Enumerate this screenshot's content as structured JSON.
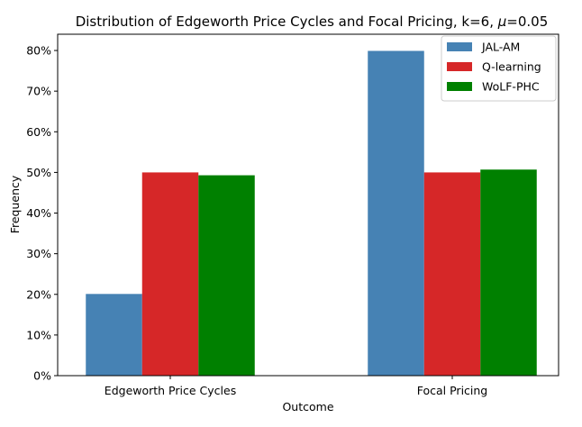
{
  "chart_data": {
    "type": "bar",
    "title_main": "Distribution of Edgeworth Price Cycles and Focal Pricing, k=6, ",
    "title_mu": "μ",
    "title_tail": "=0.05",
    "xlabel": "Outcome",
    "ylabel": "Frequency",
    "categories": [
      "Edgeworth Price Cycles",
      "Focal Pricing"
    ],
    "series": [
      {
        "name": "JAL-AM",
        "color": "#4682b4",
        "values": [
          20.1,
          79.9
        ]
      },
      {
        "name": "Q-learning",
        "color": "#d62728",
        "values": [
          50.0,
          50.0
        ]
      },
      {
        "name": "WoLF-PHC",
        "color": "#008000",
        "values": [
          49.3,
          50.7
        ]
      }
    ],
    "ylim": [
      0,
      84
    ],
    "yticks": [
      0,
      10,
      20,
      30,
      40,
      50,
      60,
      70,
      80
    ],
    "ytick_labels": [
      "0%",
      "10%",
      "20%",
      "30%",
      "40%",
      "50%",
      "60%",
      "70%",
      "80%"
    ],
    "grid": false,
    "legend_position": "top-right"
  }
}
